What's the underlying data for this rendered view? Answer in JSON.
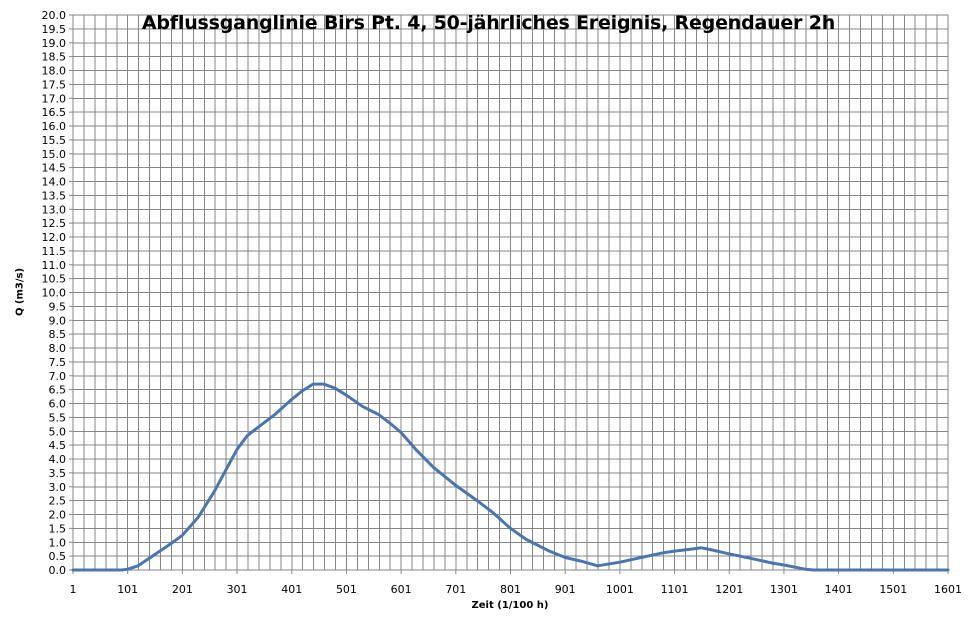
{
  "chart_data": {
    "type": "line",
    "title": "Abflussganglinie Birs Pt. 4, 50-jährliches Ereignis, Regendauer 2h",
    "xlabel": "Zeit (1/100 h)",
    "ylabel": "Q (m3/s)",
    "xlim": [
      1,
      1601
    ],
    "ylim": [
      0,
      20
    ],
    "x_tick_labels": [
      "1",
      "101",
      "201",
      "301",
      "401",
      "501",
      "601",
      "701",
      "801",
      "901",
      "1001",
      "1101",
      "1201",
      "1301",
      "1401",
      "1501",
      "1601"
    ],
    "y_tick_labels": [
      "0.0",
      "0.5",
      "1.0",
      "1.5",
      "2.0",
      "2.5",
      "3.0",
      "3.5",
      "4.0",
      "4.5",
      "5.0",
      "5.5",
      "6.0",
      "6.5",
      "7.0",
      "7.5",
      "8.0",
      "8.5",
      "9.0",
      "9.5",
      "10.0",
      "10.5",
      "11.0",
      "11.5",
      "12.0",
      "12.5",
      "13.0",
      "13.5",
      "14.0",
      "14.5",
      "15.0",
      "15.5",
      "16.0",
      "16.5",
      "17.0",
      "17.5",
      "18.0",
      "18.5",
      "19.0",
      "19.5",
      "20.0"
    ],
    "grid": true,
    "legend": "none",
    "line_color": "#4a76b0",
    "series": [
      {
        "x": [
          1,
          90,
          101,
          120,
          150,
          180,
          201,
          230,
          260,
          290,
          301,
          320,
          340,
          370,
          401,
          420,
          440,
          460,
          480,
          501,
          530,
          560,
          580,
          601,
          630,
          660,
          701,
          740,
          770,
          801,
          830,
          870,
          901,
          930,
          960,
          1001,
          1040,
          1080,
          1101,
          1130,
          1150,
          1170,
          1201,
          1240,
          1280,
          1301,
          1340,
          1355,
          1401,
          1501,
          1601
        ],
        "y": [
          0.0,
          0.0,
          0.03,
          0.15,
          0.55,
          0.95,
          1.25,
          1.9,
          2.85,
          3.95,
          4.35,
          4.85,
          5.15,
          5.6,
          6.15,
          6.45,
          6.7,
          6.7,
          6.55,
          6.3,
          5.9,
          5.6,
          5.3,
          4.95,
          4.3,
          3.7,
          3.05,
          2.5,
          2.05,
          1.5,
          1.1,
          0.7,
          0.45,
          0.32,
          0.15,
          0.28,
          0.45,
          0.62,
          0.68,
          0.75,
          0.8,
          0.72,
          0.58,
          0.42,
          0.25,
          0.18,
          0.03,
          0.0,
          0.0,
          0.0,
          0.0
        ]
      }
    ]
  }
}
